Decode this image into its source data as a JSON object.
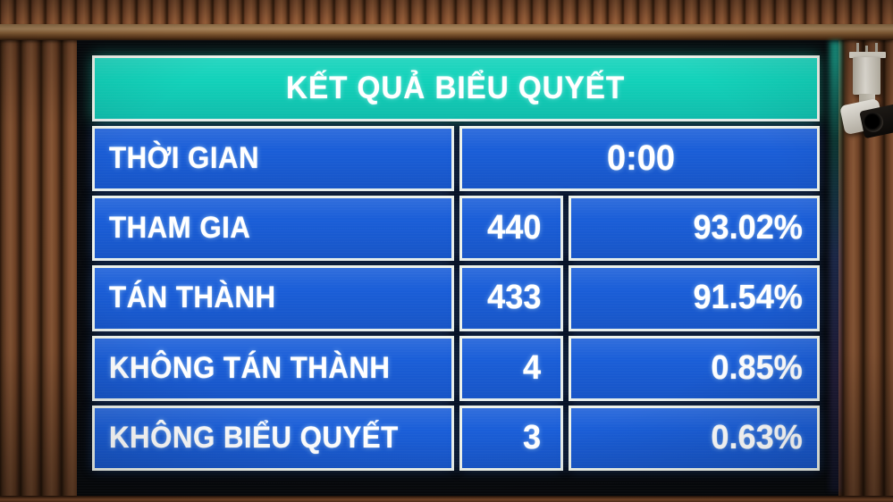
{
  "board": {
    "title": "KẾT QUẢ BIỂU QUYẾT",
    "rows": [
      {
        "label": "THỜI GIAN",
        "value": "0:00"
      },
      {
        "label": "THAM GIA",
        "count": "440",
        "percent": "93.02%"
      },
      {
        "label": "TÁN THÀNH",
        "count": "433",
        "percent": "91.54%"
      },
      {
        "label": "KHÔNG TÁN THÀNH",
        "count": "4",
        "percent": "0.85%"
      },
      {
        "label": "KHÔNG BIỂU QUYẾT",
        "count": "3",
        "percent": "0.63%"
      }
    ]
  },
  "colors": {
    "header_bg": "#12d2ba",
    "cell_bg": "#1a5ed8",
    "cell_border": "#edf2ea",
    "screen_bg": "#07090c",
    "text": "#ffffff",
    "wood": "#7c4a2a",
    "wood_dark": "#351e0d",
    "rail": "#a5815a"
  },
  "chart_data": {
    "type": "table",
    "title": "KẾT QUẢ BIỂU QUYẾT",
    "columns": [
      "label",
      "count",
      "percent"
    ],
    "rows": [
      [
        "THỜI GIAN",
        "0:00",
        ""
      ],
      [
        "THAM GIA",
        "440",
        "93.02%"
      ],
      [
        "TÁN THÀNH",
        "433",
        "91.54%"
      ],
      [
        "KHÔNG TÁN THÀNH",
        "4",
        "0.85%"
      ],
      [
        "KHÔNG BIỂU QUYẾT",
        "3",
        "0.63%"
      ]
    ]
  }
}
